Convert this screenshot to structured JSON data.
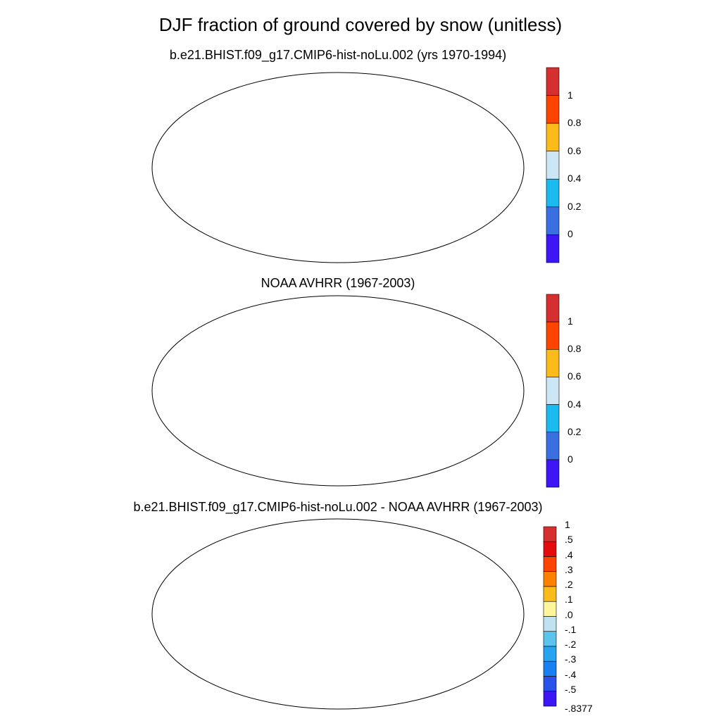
{
  "figure": {
    "title": "DJF fraction of ground covered by snow (unitless)"
  },
  "panels": [
    {
      "title": "b.e21.BHIST.f09_g17.CMIP6-hist-noLu.002 (yrs 1970-1994)",
      "colorbar": {
        "labels": [
          "1",
          "0.8",
          "0.6",
          "0.4",
          "0.2",
          "0"
        ],
        "colors": [
          "#d62f2f",
          "#ff4400",
          "#fbbb1a",
          "#cce6f6",
          "#1bbaf0",
          "#3a6fe2",
          "#3d16f5"
        ]
      }
    },
    {
      "title": "NOAA AVHRR (1967-2003)",
      "colorbar": {
        "labels": [
          "1",
          "0.8",
          "0.6",
          "0.4",
          "0.2",
          "0"
        ],
        "colors": [
          "#d62f2f",
          "#ff4400",
          "#fbbb1a",
          "#cce6f6",
          "#1bbaf0",
          "#3a6fe2",
          "#3d16f5"
        ]
      }
    },
    {
      "title": "b.e21.BHIST.f09_g17.CMIP6-hist-noLu.002 - NOAA AVHRR (1967-2003)",
      "colorbar": {
        "labels": [
          "1",
          ".5",
          ".4",
          ".3",
          ".2",
          ".1",
          ".0",
          "-.1",
          "-.2",
          "-.3",
          "-.4",
          "-.5",
          "-.8377"
        ],
        "colors": [
          "#d62f2f",
          "#e30b0b",
          "#ff4400",
          "#ff8000",
          "#fbbb1a",
          "#fff59a",
          "#bfe1f0",
          "#5cc3ec",
          "#27a4ef",
          "#1880f0",
          "#2852e8",
          "#3d16f5"
        ]
      }
    }
  ],
  "legend_colors": {
    "snow_high": "#d62f2f",
    "snow_mid": "#ff4400",
    "snow_low": "#3a6fe2",
    "diff_pos": "#fff59a",
    "diff_neg": "#bfe1f0"
  }
}
